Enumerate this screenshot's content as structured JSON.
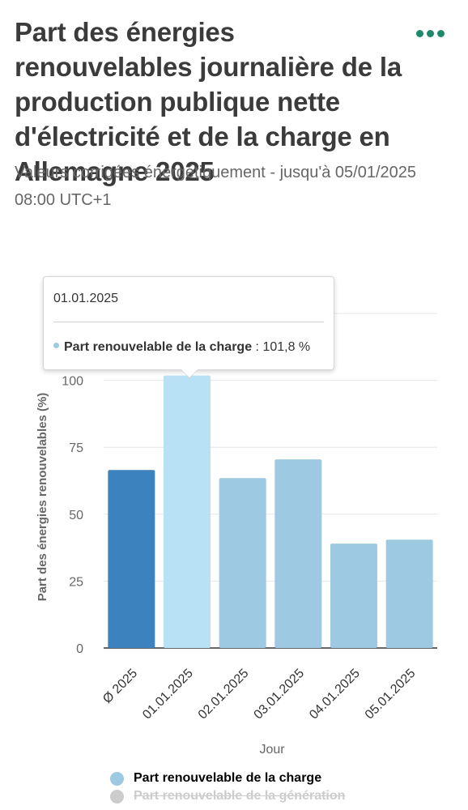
{
  "title": "Part des énergies renouvelables journalière de la production publique nette d'électricité et de la charge en Allemagne 2025",
  "subtitle": "Valeurs corrigées énergétiquement - jusqu'à 05/01/2025 08:00 UTC+1",
  "menu_icon": "more-dots-icon",
  "colors": {
    "menu": "#1f8a6b",
    "bar_default": "#9ec9e3",
    "bar_average": "#3b82bf",
    "bar_hover": "#b9e1f5",
    "legend_generation": "#cccccc"
  },
  "tooltip": {
    "date": "01.01.2025",
    "series": "Part renouvelable de la charge",
    "separator": " : ",
    "value": "101,8 %"
  },
  "legend": {
    "items": [
      {
        "label": "Part renouvelable de la charge",
        "color": "#9ec9e3",
        "active": true
      },
      {
        "label": "Part renouvelable de la génération",
        "color": "#cccccc",
        "active": false
      }
    ]
  },
  "chart_data": {
    "type": "bar",
    "categories": [
      "Ø 2025",
      "01.01.2025",
      "02.01.2025",
      "03.01.2025",
      "04.01.2025",
      "05.01.2025"
    ],
    "series": [
      {
        "name": "Part renouvelable de la charge",
        "values": [
          66.5,
          101.8,
          63.5,
          70.5,
          39,
          40.5
        ]
      }
    ],
    "xlabel": "Jour",
    "ylabel": "Part des énergies renouvelables (%)",
    "ylim": [
      0,
      125
    ],
    "yticks": [
      0,
      25,
      50,
      75,
      100,
      125
    ],
    "highlighted_index": 1,
    "average_index": 0,
    "grid": true,
    "legend_position": "bottom"
  }
}
